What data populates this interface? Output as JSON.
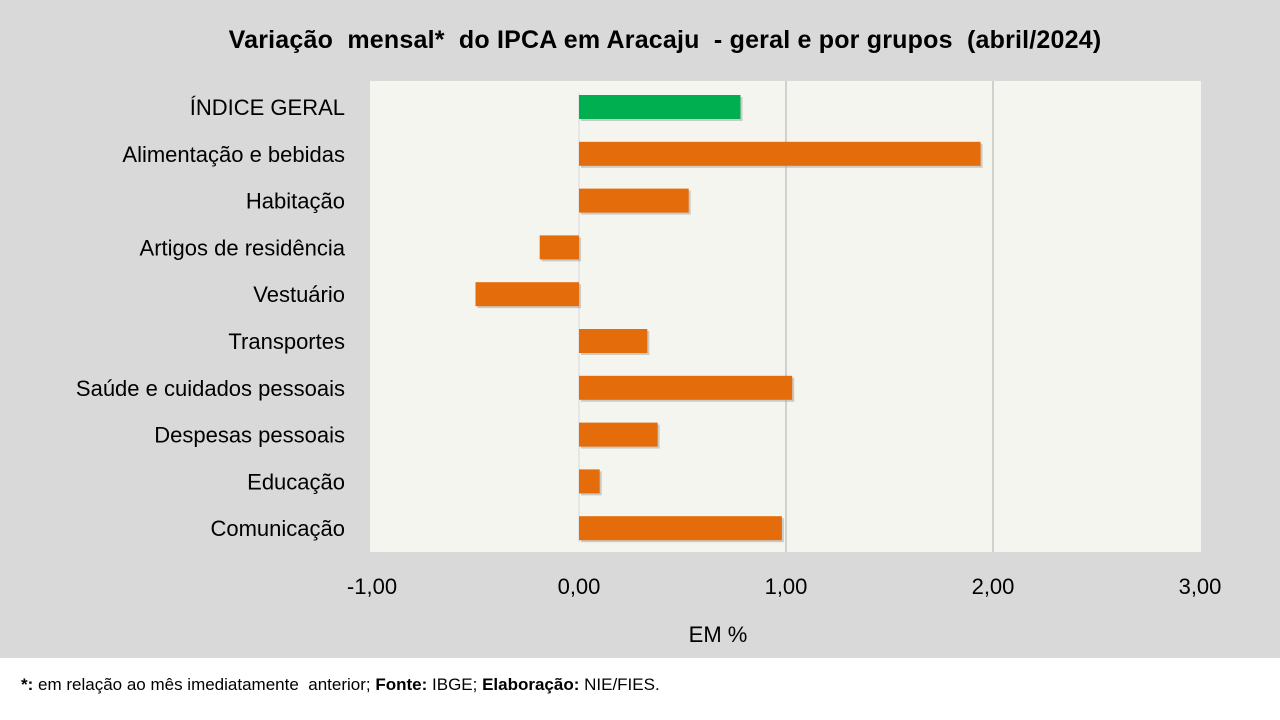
{
  "chart_data": {
    "type": "bar",
    "orientation": "horizontal",
    "title": "Variação  mensal*  do IPCA em Aracaju  - geral e por grupos  (abril/2024)",
    "xlabel": "EM %",
    "ylabel": "",
    "xlim": [
      -1,
      3
    ],
    "x_ticks": [
      -1,
      0,
      1,
      2,
      3
    ],
    "x_tick_labels": [
      "-1,00",
      "0,00",
      "1,00",
      "2,00",
      "3,00"
    ],
    "grid": "vertical",
    "categories": [
      "ÍNDICE GERAL",
      "Alimentação e bebidas",
      "Habitação",
      "Artigos de residência",
      "Vestuário",
      "Transportes",
      "Saúde e cuidados pessoais",
      "Despesas pessoais",
      "Educação",
      "Comunicação"
    ],
    "values": [
      0.78,
      1.94,
      0.53,
      -0.19,
      -0.5,
      0.33,
      1.03,
      0.38,
      0.1,
      0.98
    ],
    "colors": [
      "#00b050",
      "#e46c0a",
      "#e46c0a",
      "#e46c0a",
      "#e46c0a",
      "#e46c0a",
      "#e46c0a",
      "#e46c0a",
      "#e46c0a",
      "#e46c0a"
    ]
  },
  "footnote": {
    "star": "*:",
    "relation_text": " em relação ao mês imediatamente  anterior; ",
    "source_label": "Fonte:",
    "source_value": " IBGE; ",
    "credit_label": "Elaboração:",
    "credit_value": " NIE/FIES."
  }
}
